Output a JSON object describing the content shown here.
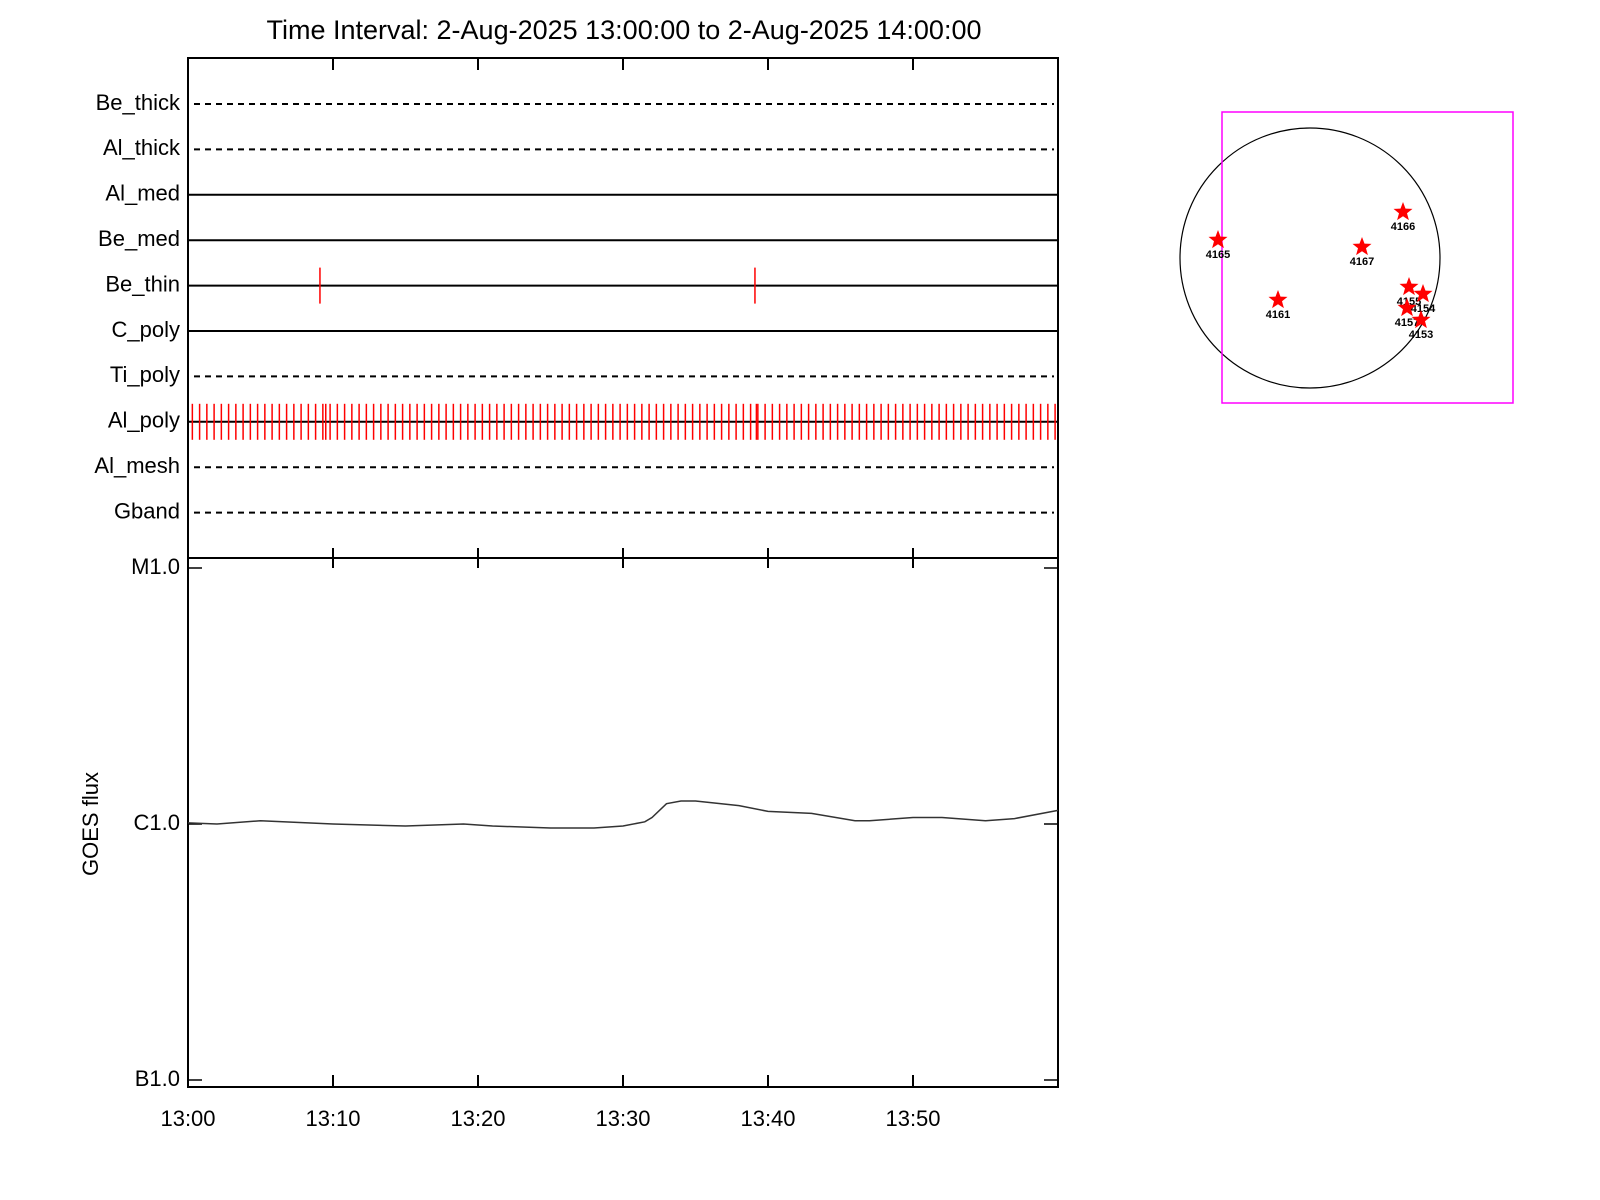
{
  "title": "Time Interval:  2-Aug-2025 13:00:00 to  2-Aug-2025 14:00:00",
  "chart_data": [
    {
      "type": "events",
      "xlim": [
        0,
        60
      ],
      "xticks": [
        {
          "value": 0,
          "label": "13:00"
        },
        {
          "value": 10,
          "label": "13:10"
        },
        {
          "value": 20,
          "label": "13:20"
        },
        {
          "value": 30,
          "label": "13:30"
        },
        {
          "value": 40,
          "label": "13:40"
        },
        {
          "value": 50,
          "label": "13:50"
        }
      ],
      "event_color": "#ff0000",
      "rows": [
        {
          "name": "Be_thick",
          "style": "dashed",
          "events": []
        },
        {
          "name": "Al_thick",
          "style": "dashed",
          "events": []
        },
        {
          "name": "Al_med",
          "style": "solid",
          "events": []
        },
        {
          "name": "Be_med",
          "style": "solid",
          "events": []
        },
        {
          "name": "Be_thin",
          "style": "solid",
          "events": [
            9.1,
            39.1
          ]
        },
        {
          "name": "C_poly",
          "style": "solid",
          "events": []
        },
        {
          "name": "Ti_poly",
          "style": "dashed",
          "events": []
        },
        {
          "name": "Al_poly",
          "style": "solid",
          "events": [
            0.3,
            0.8,
            1.3,
            1.8,
            2.3,
            2.8,
            3.3,
            3.8,
            4.3,
            4.8,
            5.3,
            5.8,
            6.3,
            6.8,
            7.3,
            7.8,
            8.3,
            8.8,
            9.3,
            9.5,
            9.8,
            10.3,
            10.8,
            11.3,
            11.8,
            12.3,
            12.8,
            13.3,
            13.8,
            14.3,
            14.8,
            15.3,
            15.8,
            16.3,
            16.8,
            17.3,
            17.8,
            18.3,
            18.8,
            19.3,
            19.8,
            20.3,
            20.8,
            21.3,
            21.8,
            22.3,
            22.8,
            23.3,
            23.8,
            24.3,
            24.8,
            25.3,
            25.8,
            26.3,
            26.8,
            27.3,
            27.8,
            28.3,
            28.8,
            29.3,
            29.8,
            30.3,
            30.8,
            31.3,
            31.8,
            32.3,
            32.8,
            33.3,
            33.8,
            34.3,
            34.8,
            35.3,
            35.8,
            36.3,
            36.8,
            37.3,
            37.8,
            38.3,
            38.8,
            39.2,
            39.3,
            39.8,
            40.3,
            40.8,
            41.3,
            41.8,
            42.3,
            42.8,
            43.3,
            43.8,
            44.3,
            44.8,
            45.3,
            45.8,
            46.3,
            46.8,
            47.3,
            47.8,
            48.3,
            48.8,
            49.3,
            49.8,
            50.3,
            50.8,
            51.3,
            51.8,
            52.3,
            52.8,
            53.3,
            53.8,
            54.3,
            54.8,
            55.3,
            55.8,
            56.3,
            56.8,
            57.3,
            57.8,
            58.3,
            58.8,
            59.3,
            59.8
          ]
        },
        {
          "name": "Al_mesh",
          "style": "dashed",
          "events": []
        },
        {
          "name": "Gband",
          "style": "dashed",
          "events": []
        }
      ]
    },
    {
      "type": "line",
      "ylabel": "GOES flux",
      "log_scale": true,
      "color": "#333333",
      "xlim": [
        0,
        60
      ],
      "ylim": [
        1e-07,
        1e-05
      ],
      "yticks": [
        {
          "value": 1e-05,
          "label": "M1.0"
        },
        {
          "value": 1e-06,
          "label": "C1.0"
        },
        {
          "value": 1e-07,
          "label": "B1.0"
        }
      ],
      "x": [
        0,
        2,
        5,
        10,
        15,
        19,
        21,
        25,
        28,
        30,
        31.5,
        32,
        33,
        34,
        35,
        38,
        40,
        43,
        46,
        47,
        50,
        52,
        55,
        57,
        60
      ],
      "values": [
        1.01e-06,
        1e-06,
        1.03e-06,
        1e-06,
        9.82e-07,
        1e-06,
        9.82e-07,
        9.65e-07,
        9.65e-07,
        9.82e-07,
        1.02e-06,
        1.06e-06,
        1.2e-06,
        1.23e-06,
        1.23e-06,
        1.18e-06,
        1.12e-06,
        1.1e-06,
        1.03e-06,
        1.03e-06,
        1.06e-06,
        1.06e-06,
        1.03e-06,
        1.05e-06,
        1.13e-06
      ]
    }
  ],
  "sun_map": {
    "regions": [
      "4165",
      "4166",
      "4167",
      "4161",
      "4155",
      "4154",
      "4157",
      "4153"
    ]
  }
}
